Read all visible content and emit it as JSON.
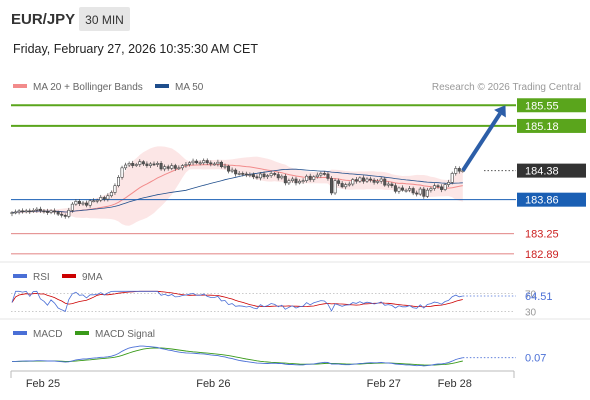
{
  "header": {
    "symbol": "EUR/JPY",
    "timeframe": "30 MIN",
    "datetime": "Friday, February 27, 2026 10:35:30 AM CET",
    "copyright": "Research © 2026 Trading Central"
  },
  "chart_data": {
    "type": "candlestick",
    "symbol": "EUR/JPY",
    "interval": "30 MIN",
    "ylim": [
      182.78,
      185.68
    ],
    "x_ticks": [
      {
        "label": "Feb 25",
        "candle": 9
      },
      {
        "label": "Feb 26",
        "candle": 57
      },
      {
        "label": "Feb 27",
        "candle": 105
      },
      {
        "label": "Feb 28",
        "candle": 125
      }
    ],
    "legend": [
      {
        "label": "MA 20 + Bollinger Bands",
        "color": "#f28b8b"
      },
      {
        "label": "MA 50",
        "color": "#1f4e8c"
      }
    ],
    "levels": [
      {
        "value": 185.55,
        "label": "185.55",
        "color": "#5aa51c",
        "kind": "resistance"
      },
      {
        "value": 185.18,
        "label": "185.18",
        "color": "#5aa51c",
        "kind": "resistance"
      },
      {
        "value": 184.38,
        "label": "184.38",
        "color": "#333333",
        "kind": "last"
      },
      {
        "value": 183.86,
        "label": "183.86",
        "color": "#1a5fb4",
        "kind": "pivot"
      },
      {
        "value": 183.25,
        "label": "183.25",
        "color": "#cc2222",
        "kind": "support"
      },
      {
        "value": 182.89,
        "label": "182.89",
        "color": "#cc2222",
        "kind": "support"
      }
    ],
    "arrow": {
      "from": [
        127,
        184.38
      ],
      "to": [
        139,
        185.55
      ],
      "color": "#2c5ea8"
    },
    "closes": [
      183.63,
      183.64,
      183.66,
      183.65,
      183.66,
      183.65,
      183.67,
      183.69,
      183.66,
      183.65,
      183.63,
      183.66,
      183.64,
      183.6,
      183.58,
      183.56,
      183.67,
      183.78,
      183.83,
      183.79,
      183.8,
      183.76,
      183.84,
      183.84,
      183.85,
      183.9,
      183.87,
      183.93,
      183.99,
      184.11,
      184.26,
      184.43,
      184.48,
      184.51,
      184.47,
      184.49,
      184.54,
      184.5,
      184.47,
      184.5,
      184.49,
      184.51,
      184.41,
      184.45,
      184.42,
      184.47,
      184.42,
      184.43,
      184.47,
      184.49,
      184.52,
      184.55,
      184.52,
      184.52,
      184.56,
      184.52,
      184.5,
      184.5,
      184.53,
      184.45,
      184.46,
      184.37,
      184.39,
      184.32,
      184.33,
      184.32,
      184.3,
      184.31,
      184.27,
      184.25,
      184.32,
      184.27,
      184.29,
      184.33,
      184.31,
      184.25,
      184.28,
      184.16,
      184.2,
      184.23,
      184.16,
      184.19,
      184.2,
      184.28,
      184.22,
      184.27,
      184.3,
      184.33,
      184.32,
      184.24,
      183.98,
      184.2,
      184.15,
      184.09,
      184.13,
      184.14,
      184.22,
      184.19,
      184.25,
      184.19,
      184.23,
      184.21,
      184.17,
      184.19,
      184.23,
      184.12,
      184.14,
      184.11,
      184.01,
      184.07,
      184.03,
      184.03,
      184.06,
      183.98,
      183.96,
      184.05,
      183.92,
      184.03,
      184.06,
      184.11,
      184.09,
      184.04,
      184.13,
      184.17,
      184.33,
      184.42,
      184.37,
      184.38
    ],
    "rsi": {
      "label": "RSI",
      "color": "#4a6fd6",
      "last": 64.51,
      "levels": [
        70,
        30
      ],
      "signal": {
        "label": "9MA",
        "color": "#cc0000"
      }
    },
    "macd": {
      "label": "MACD",
      "color": "#4a6fd6",
      "last": 0.07,
      "signal": {
        "label": "MACD Signal",
        "color": "#3a9a1a"
      }
    }
  }
}
